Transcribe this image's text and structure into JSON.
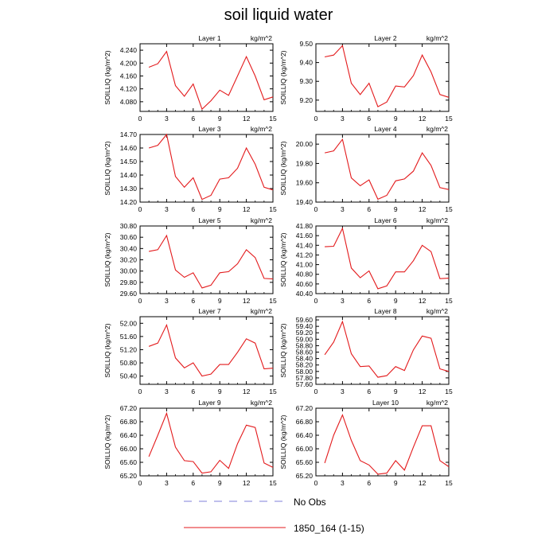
{
  "figure": {
    "title": "soil liquid water"
  },
  "legend": {
    "items": [
      {
        "label": "No Obs",
        "color": "#7f7fd9",
        "style": "dashed"
      },
      {
        "label": "1850_164 (1-15)",
        "color": "#e31a1c",
        "style": "solid"
      }
    ]
  },
  "chart_data": [
    {
      "type": "line",
      "title": "Layer 1",
      "unit": "kg/m^2",
      "ylabel": "SOILLIQ  (kg/m^2)",
      "x": [
        1,
        2,
        3,
        4,
        5,
        6,
        7,
        8,
        9,
        10,
        11,
        12,
        13,
        14,
        15
      ],
      "xlim": [
        0,
        15
      ],
      "xticks": [
        0,
        3,
        6,
        9,
        12,
        15
      ],
      "ylim": [
        4.05,
        4.26
      ],
      "yticks": [
        "4.080",
        "4.120",
        "4.160",
        "4.200",
        "4.240"
      ],
      "series": [
        {
          "values": [
            4.187,
            4.198,
            4.236,
            4.13,
            4.097,
            4.135,
            4.057,
            4.083,
            4.116,
            4.1,
            4.16,
            4.22,
            4.16,
            4.086,
            4.095
          ]
        }
      ]
    },
    {
      "type": "line",
      "title": "Layer 2",
      "unit": "kg/m^2",
      "ylabel": "SOILLIQ  (kg/m^2)",
      "x": [
        1,
        2,
        3,
        4,
        5,
        6,
        7,
        8,
        9,
        10,
        11,
        12,
        13,
        14,
        15
      ],
      "xlim": [
        0,
        15
      ],
      "xticks": [
        0,
        3,
        6,
        9,
        12,
        15
      ],
      "ylim": [
        9.14,
        9.5
      ],
      "yticks": [
        "9.20",
        "9.30",
        "9.40",
        "9.50"
      ],
      "series": [
        {
          "values": [
            9.43,
            9.44,
            9.49,
            9.29,
            9.23,
            9.29,
            9.165,
            9.19,
            9.275,
            9.27,
            9.33,
            9.44,
            9.35,
            9.23,
            9.215
          ]
        }
      ]
    },
    {
      "type": "line",
      "title": "Layer 3",
      "unit": "kg/m^2",
      "ylabel": "SOILLIQ  (kg/m^2)",
      "x": [
        1,
        2,
        3,
        4,
        5,
        6,
        7,
        8,
        9,
        10,
        11,
        12,
        13,
        14,
        15
      ],
      "xlim": [
        0,
        15
      ],
      "xticks": [
        0,
        3,
        6,
        9,
        12,
        15
      ],
      "ylim": [
        14.2,
        14.7
      ],
      "yticks": [
        "14.20",
        "14.30",
        "14.40",
        "14.50",
        "14.60",
        "14.70"
      ],
      "series": [
        {
          "values": [
            14.6,
            14.62,
            14.7,
            14.39,
            14.31,
            14.38,
            14.22,
            14.25,
            14.37,
            14.38,
            14.45,
            14.6,
            14.48,
            14.31,
            14.29
          ]
        }
      ]
    },
    {
      "type": "line",
      "title": "Layer 4",
      "unit": "kg/m^2",
      "ylabel": "SOILLIQ  (kg/m^2)",
      "x": [
        1,
        2,
        3,
        4,
        5,
        6,
        7,
        8,
        9,
        10,
        11,
        12,
        13,
        14,
        15
      ],
      "xlim": [
        0,
        15
      ],
      "xticks": [
        0,
        3,
        6,
        9,
        12,
        15
      ],
      "ylim": [
        19.4,
        20.1
      ],
      "yticks": [
        "19.40",
        "19.60",
        "19.80",
        "20.00"
      ],
      "series": [
        {
          "values": [
            19.91,
            19.93,
            20.05,
            19.65,
            19.57,
            19.63,
            19.43,
            19.47,
            19.62,
            19.64,
            19.72,
            19.91,
            19.78,
            19.55,
            19.53
          ]
        }
      ]
    },
    {
      "type": "line",
      "title": "Layer 5",
      "unit": "kg/m^2",
      "ylabel": "SOILLIQ  (kg/m^2)",
      "x": [
        1,
        2,
        3,
        4,
        5,
        6,
        7,
        8,
        9,
        10,
        11,
        12,
        13,
        14,
        15
      ],
      "xlim": [
        0,
        15
      ],
      "xticks": [
        0,
        3,
        6,
        9,
        12,
        15
      ],
      "ylim": [
        29.6,
        30.8
      ],
      "yticks": [
        "29.60",
        "29.80",
        "30.00",
        "30.20",
        "30.40",
        "30.60",
        "30.80"
      ],
      "series": [
        {
          "values": [
            30.35,
            30.38,
            30.63,
            30.02,
            29.89,
            29.97,
            29.7,
            29.75,
            29.97,
            29.99,
            30.13,
            30.38,
            30.24,
            29.87,
            29.86
          ]
        }
      ]
    },
    {
      "type": "line",
      "title": "Layer 6",
      "unit": "kg/m^2",
      "ylabel": "SOILLIQ  (kg/m^2)",
      "x": [
        1,
        2,
        3,
        4,
        5,
        6,
        7,
        8,
        9,
        10,
        11,
        12,
        13,
        14,
        15
      ],
      "xlim": [
        0,
        15
      ],
      "xticks": [
        0,
        3,
        6,
        9,
        12,
        15
      ],
      "ylim": [
        40.4,
        41.8
      ],
      "yticks": [
        "40.40",
        "40.60",
        "40.80",
        "41.00",
        "41.20",
        "41.40",
        "41.60",
        "41.80"
      ],
      "series": [
        {
          "values": [
            41.37,
            41.38,
            41.75,
            40.93,
            40.73,
            40.87,
            40.5,
            40.56,
            40.85,
            40.85,
            41.08,
            41.4,
            41.27,
            40.71,
            40.72
          ]
        }
      ]
    },
    {
      "type": "line",
      "title": "Layer 7",
      "unit": "kg/m^2",
      "ylabel": "SOILLIQ  (kg/m^2)",
      "x": [
        1,
        2,
        3,
        4,
        5,
        6,
        7,
        8,
        9,
        10,
        11,
        12,
        13,
        14,
        15
      ],
      "xlim": [
        0,
        15
      ],
      "xticks": [
        0,
        3,
        6,
        9,
        12,
        15
      ],
      "ylim": [
        50.15,
        52.2
      ],
      "yticks": [
        "50.40",
        "50.80",
        "51.20",
        "51.60",
        "52.00"
      ],
      "series": [
        {
          "values": [
            51.3,
            51.4,
            51.95,
            50.95,
            50.65,
            50.8,
            50.4,
            50.46,
            50.75,
            50.75,
            51.12,
            51.53,
            51.4,
            50.62,
            50.64
          ]
        }
      ]
    },
    {
      "type": "line",
      "title": "Layer 8",
      "unit": "kg/m^2",
      "ylabel": "SOILLIQ  (kg/m^2)",
      "x": [
        1,
        2,
        3,
        4,
        5,
        6,
        7,
        8,
        9,
        10,
        11,
        12,
        13,
        14,
        15
      ],
      "xlim": [
        0,
        15
      ],
      "xticks": [
        0,
        3,
        6,
        9,
        12,
        15
      ],
      "ylim": [
        57.6,
        59.7
      ],
      "yticks": [
        "57.60",
        "57.80",
        "58.00",
        "58.20",
        "58.40",
        "58.60",
        "58.80",
        "59.00",
        "59.20",
        "59.40",
        "59.60"
      ],
      "series": [
        {
          "values": [
            58.52,
            58.91,
            59.55,
            58.55,
            58.15,
            58.17,
            57.82,
            57.87,
            58.15,
            58.03,
            58.67,
            59.1,
            59.03,
            58.08,
            58.0
          ]
        }
      ]
    },
    {
      "type": "line",
      "title": "Layer 9",
      "unit": "kg/m^2",
      "ylabel": "SOILLIQ  (kg/m^2)",
      "x": [
        1,
        2,
        3,
        4,
        5,
        6,
        7,
        8,
        9,
        10,
        11,
        12,
        13,
        14,
        15
      ],
      "xlim": [
        0,
        15
      ],
      "xticks": [
        0,
        3,
        6,
        9,
        12,
        15
      ],
      "ylim": [
        65.2,
        67.2
      ],
      "yticks": [
        "65.20",
        "65.60",
        "66.00",
        "66.40",
        "66.80",
        "67.20"
      ],
      "series": [
        {
          "values": [
            65.77,
            66.4,
            67.05,
            66.05,
            65.65,
            65.62,
            65.28,
            65.32,
            65.66,
            65.42,
            66.15,
            66.7,
            66.63,
            65.58,
            65.45
          ]
        }
      ]
    },
    {
      "type": "line",
      "title": "Layer 10",
      "unit": "kg/m^2",
      "ylabel": "SOILLIQ  (kg/m^2)",
      "x": [
        1,
        2,
        3,
        4,
        5,
        6,
        7,
        8,
        9,
        10,
        11,
        12,
        13,
        14,
        15
      ],
      "xlim": [
        0,
        15
      ],
      "xticks": [
        0,
        3,
        6,
        9,
        12,
        15
      ],
      "ylim": [
        65.2,
        67.2
      ],
      "yticks": [
        "65.20",
        "65.60",
        "66.00",
        "66.40",
        "66.80",
        "67.20"
      ],
      "series": [
        {
          "values": [
            65.58,
            66.4,
            67.0,
            66.25,
            65.65,
            65.52,
            65.25,
            65.28,
            65.65,
            65.37,
            66.05,
            66.68,
            66.68,
            65.65,
            65.47
          ]
        }
      ]
    }
  ]
}
